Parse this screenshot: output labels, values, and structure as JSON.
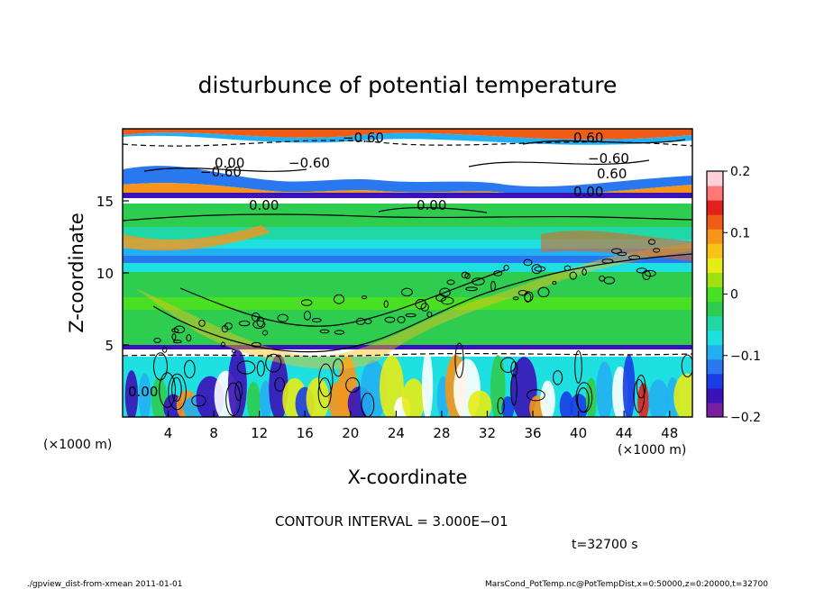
{
  "chart_data": {
    "type": "heatmap",
    "title": "disturbunce of potential temperature",
    "xlabel": "X-coordinate",
    "ylabel": "Z-coordinate",
    "x_unit_label": "(×1000 m)",
    "xlim": [
      0,
      50
    ],
    "ylim": [
      0,
      20
    ],
    "x_ticks": [
      4,
      8,
      12,
      16,
      20,
      24,
      28,
      32,
      36,
      40,
      44,
      48
    ],
    "y_ticks": [
      5,
      10,
      15
    ],
    "colorbar": {
      "range": [
        -0.2,
        0.2
      ],
      "tick_values": [
        -0.2,
        -0.1,
        0,
        0.1,
        0.2
      ],
      "tick_labels": [
        "−0.2",
        "−0.1",
        "0",
        "0.1",
        "0.2"
      ],
      "colors": [
        "#7a1fa2",
        "#3b12b8",
        "#1a3de6",
        "#2a78f0",
        "#22b0f2",
        "#1ee0e0",
        "#20d7a5",
        "#2ecc4f",
        "#49e023",
        "#9ee012",
        "#e6ec16",
        "#f8c21a",
        "#f7951a",
        "#f05c16",
        "#e4201c",
        "#ff7878",
        "#ffd0d8"
      ]
    },
    "contour_labels": [
      "−0.60",
      "−0.60",
      "0.00",
      "−0.60",
      "−0.60",
      "0.60",
      "0.00",
      "0.00",
      "0.00",
      "0.00",
      "0.60"
    ],
    "contour_interval_text": "CONTOUR INTERVAL = 3.000E−01",
    "time_text": "t=32700 s",
    "series_bands": [
      {
        "z": [
          0,
          5
        ],
        "value": -0.05
      },
      {
        "z": [
          5,
          9
        ],
        "value": 0.0
      },
      {
        "z": [
          9,
          11
        ],
        "value": -0.12
      },
      {
        "z": [
          11,
          15
        ],
        "value": -0.02
      },
      {
        "z": [
          15,
          16
        ],
        "value": 0.0
      },
      {
        "z": [
          16,
          20
        ],
        "value": 0.15
      }
    ]
  },
  "footer": {
    "left": "./gpview_dist-from-xmean   2011-01-01",
    "right": "MarsCond_PotTemp.nc@PotTempDist,x=0:50000,z=0:20000,t=32700"
  }
}
